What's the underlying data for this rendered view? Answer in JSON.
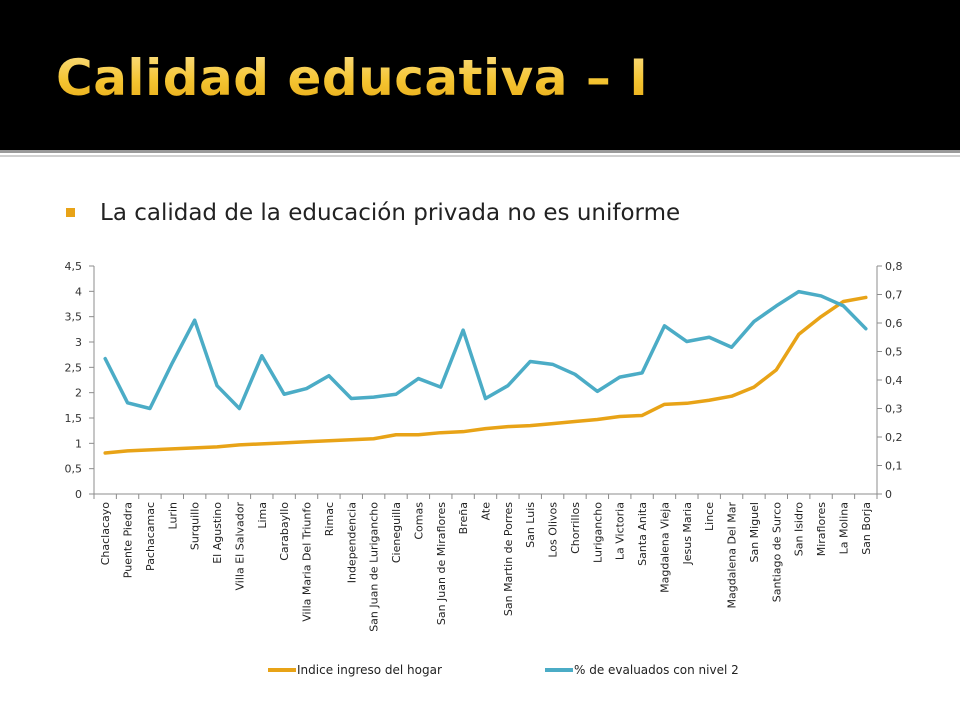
{
  "slide": {
    "title": "Calidad educativa – I",
    "bullet": "La calidad de la educación privada no es uniforme"
  },
  "colors": {
    "title_bar": "#000000",
    "title_text": "#f2c832",
    "bullet_marker": "#e8a317",
    "series_income": "#e8a317",
    "series_students": "#4bacc6"
  },
  "chart_data": {
    "type": "line",
    "title": "",
    "xlabel": "",
    "ylabel": "",
    "categories": [
      "Chaclacayo",
      "Puente Piedra",
      "Pachacamac",
      "Lurin",
      "Surquillo",
      "El Agustino",
      "Villa El Salvador",
      "Lima",
      "Carabayllo",
      "Villa Maria Del Triunfo",
      "Rimac",
      "Independencia",
      "San Juan de Lurigancho",
      "Cieneguilla",
      "Comas",
      "San Juan de Miraflores",
      "Breña",
      "Ate",
      "San Martin de Porres",
      "San Luis",
      "Los Olivos",
      "Chorrillos",
      "Lurigancho",
      "La Victoria",
      "Santa Anita",
      "Magdalena Vieja",
      "Jesus Maria",
      "Lince",
      "Magdalena Del Mar",
      "San Miguel",
      "Santiago de Surco",
      "San Isidro",
      "Miraflores",
      "La Molina",
      "San Borja"
    ],
    "series": [
      {
        "name": "Indice ingreso del hogar",
        "axis": "left",
        "color": "#e8a317",
        "values": [
          0.81,
          0.85,
          0.87,
          0.89,
          0.91,
          0.93,
          0.97,
          0.99,
          1.01,
          1.03,
          1.05,
          1.07,
          1.09,
          1.17,
          1.17,
          1.21,
          1.23,
          1.29,
          1.33,
          1.35,
          1.39,
          1.43,
          1.47,
          1.53,
          1.55,
          1.77,
          1.79,
          1.85,
          1.93,
          2.11,
          2.45,
          3.15,
          3.5,
          3.8,
          3.88
        ]
      },
      {
        "name": "% de evaluados con nivel 2",
        "axis": "right",
        "color": "#4bacc6",
        "values": [
          0.475,
          0.32,
          0.3,
          0.46,
          0.61,
          0.38,
          0.3,
          0.485,
          0.35,
          0.37,
          0.415,
          0.335,
          0.34,
          0.35,
          0.405,
          0.375,
          0.575,
          0.335,
          0.38,
          0.465,
          0.455,
          0.42,
          0.36,
          0.41,
          0.425,
          0.59,
          0.535,
          0.55,
          0.515,
          0.605,
          0.66,
          0.71,
          0.695,
          0.66,
          0.58
        ]
      }
    ],
    "y_left": {
      "min": 0,
      "max": 4.5,
      "ticks": [
        "0",
        "0,5",
        "1",
        "1,5",
        "2",
        "2,5",
        "3",
        "3,5",
        "4",
        "4,5"
      ]
    },
    "y_right": {
      "min": 0,
      "max": 0.8,
      "ticks": [
        "0",
        "0,1",
        "0,2",
        "0,3",
        "0,4",
        "0,5",
        "0,6",
        "0,7",
        "0,8"
      ]
    },
    "grid": false,
    "legend": {
      "position": "bottom",
      "entries": [
        "Indice ingreso del hogar",
        "% de evaluados con nivel 2"
      ]
    }
  }
}
